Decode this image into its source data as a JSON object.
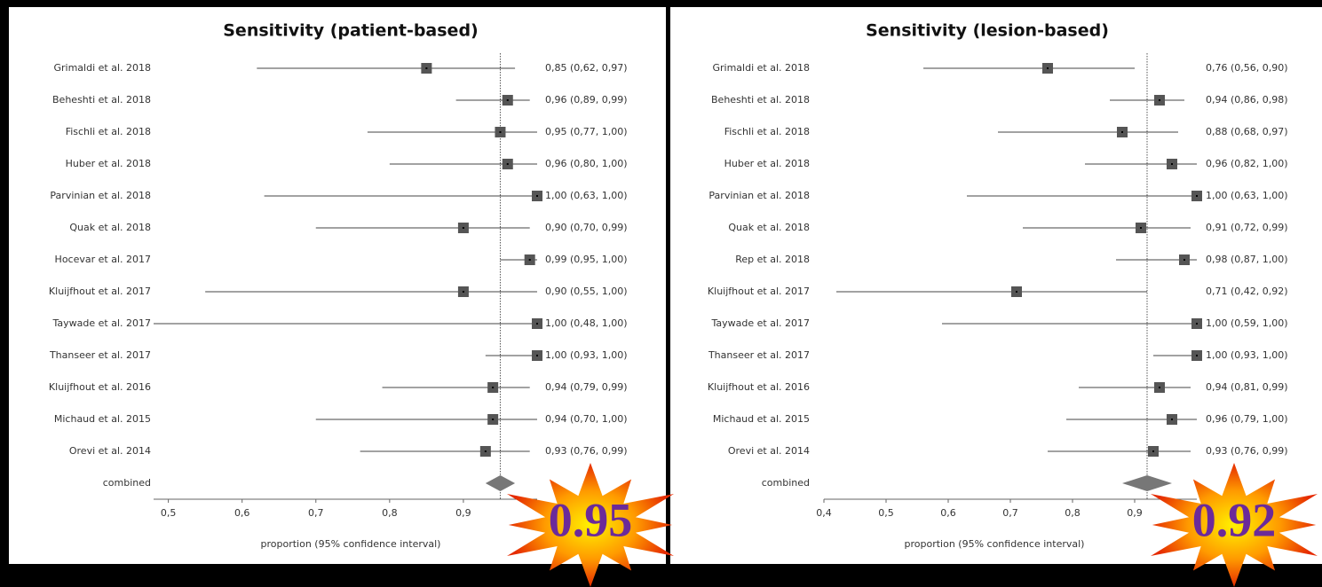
{
  "chart_data": [
    {
      "type": "forest",
      "title": "Sensitivity (patient-based)",
      "categories": [
        "Grimaldi et al. 2018",
        "Beheshti et al. 2018",
        "Fischli et al. 2018",
        "Huber et al. 2018",
        "Parvinian et al. 2018",
        "Quak et al. 2018",
        "Hocevar et al. 2017",
        "Kluijfhout et al. 2017",
        "Taywade et al. 2017",
        "Thanseer et al. 2017",
        "Kluijfhout et al. 2016",
        "Michaud et al. 2015",
        "Orevi et al. 2014",
        "combined"
      ],
      "values": [
        0.85,
        0.96,
        0.95,
        0.96,
        1.0,
        0.9,
        0.99,
        0.9,
        1.0,
        1.0,
        0.94,
        0.94,
        0.93,
        0.95
      ],
      "lower": [
        0.62,
        0.89,
        0.77,
        0.8,
        0.63,
        0.7,
        0.95,
        0.55,
        0.48,
        0.93,
        0.79,
        0.7,
        0.76,
        0.93
      ],
      "upper": [
        0.97,
        0.99,
        1.0,
        1.0,
        1.0,
        0.99,
        1.0,
        1.0,
        1.0,
        1.0,
        0.99,
        1.0,
        0.99,
        0.97
      ],
      "value_labels": [
        "0,85 (0,62, 0,97)",
        "0,96 (0,89, 0,99)",
        "0,95 (0,77, 1,00)",
        "0,96 (0,80, 1,00)",
        "1,00 (0,63, 1,00)",
        "0,90 (0,70, 0,99)",
        "0,99 (0,95, 1,00)",
        "0,90 (0,55, 1,00)",
        "1,00 (0,48, 1,00)",
        "1,00 (0,93, 1,00)",
        "0,94 (0,79, 0,99)",
        "0,94 (0,70, 1,00)",
        "0,93 (0,76, 0,99)",
        null
      ],
      "xlim": [
        0.48,
        1.0
      ],
      "xticks": [
        {
          "value": 0.5,
          "label": "0,5"
        },
        {
          "value": 0.6,
          "label": "0,6"
        },
        {
          "value": 0.7,
          "label": "0,7"
        },
        {
          "value": 0.8,
          "label": "0,8"
        },
        {
          "value": 0.9,
          "label": "0,9"
        }
      ],
      "xlabel": "proportion (95% confidence interval)",
      "annotation": "0.95",
      "color": "#555555"
    },
    {
      "type": "forest",
      "title": "Sensitivity (lesion-based)",
      "categories": [
        "Grimaldi et al. 2018",
        "Beheshti et al. 2018",
        "Fischli et al. 2018",
        "Huber et al. 2018",
        "Parvinian et al. 2018",
        "Quak et al. 2018",
        "Rep et al. 2018",
        "Kluijfhout et al. 2017",
        "Taywade et al. 2017",
        "Thanseer et al. 2017",
        "Kluijfhout et al. 2016",
        "Michaud et al. 2015",
        "Orevi et al. 2014",
        "combined"
      ],
      "values": [
        0.76,
        0.94,
        0.88,
        0.96,
        1.0,
        0.91,
        0.98,
        0.71,
        1.0,
        1.0,
        0.94,
        0.96,
        0.93,
        0.92
      ],
      "lower": [
        0.56,
        0.86,
        0.68,
        0.82,
        0.63,
        0.72,
        0.87,
        0.42,
        0.59,
        0.93,
        0.81,
        0.79,
        0.76,
        0.88
      ],
      "upper": [
        0.9,
        0.98,
        0.97,
        1.0,
        1.0,
        0.99,
        1.0,
        0.92,
        1.0,
        1.0,
        0.99,
        1.0,
        0.99,
        0.96
      ],
      "value_labels": [
        "0,76 (0,56, 0,90)",
        "0,94 (0,86, 0,98)",
        "0,88 (0,68, 0,97)",
        "0,96 (0,82, 1,00)",
        "1,00 (0,63, 1,00)",
        "0,91 (0,72, 0,99)",
        "0,98 (0,87, 1,00)",
        "0,71 (0,42, 0,92)",
        "1,00 (0,59, 1,00)",
        "1,00 (0,93, 1,00)",
        "0,94 (0,81, 0,99)",
        "0,96 (0,79, 1,00)",
        "0,93 (0,76, 0,99)",
        null
      ],
      "xlim": [
        0.4,
        1.0
      ],
      "xticks": [
        {
          "value": 0.4,
          "label": "0,4"
        },
        {
          "value": 0.5,
          "label": "0,5"
        },
        {
          "value": 0.6,
          "label": "0,6"
        },
        {
          "value": 0.7,
          "label": "0,7"
        },
        {
          "value": 0.8,
          "label": "0,8"
        },
        {
          "value": 0.9,
          "label": "0,9"
        }
      ],
      "xlabel": "proportion (95% confidence interval)",
      "annotation": "0.92",
      "color": "#555555"
    }
  ]
}
